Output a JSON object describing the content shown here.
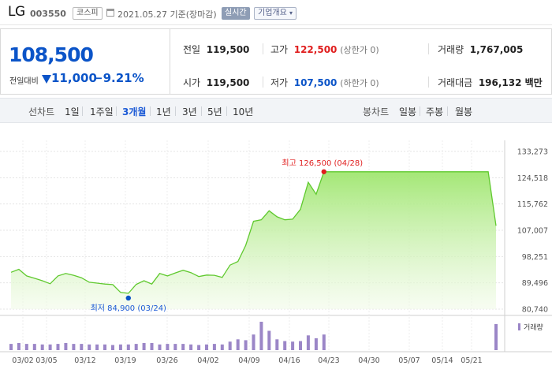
{
  "header": {
    "name": "LG",
    "code": "003550",
    "market": "코스피",
    "date": "2021.05.27 기준(장마감)",
    "realtime": "실시간",
    "company_info": "기업개요"
  },
  "price": {
    "current": "108,500",
    "change_label": "전일대비",
    "change": "11,000",
    "change_pct": "−9.21%",
    "color": "#0b54c8"
  },
  "stats": {
    "prev_label": "전일",
    "prev": "119,500",
    "high_label": "고가",
    "high": "122,500",
    "high_sub": "(상한가 0)",
    "volume_label": "거래량",
    "volume": "1,767,005",
    "open_label": "시가",
    "open": "119,500",
    "low_label": "저가",
    "low": "107,500",
    "low_sub": "(하한가 0)",
    "amount_label": "거래대금",
    "amount": "196,132 백만"
  },
  "periods": {
    "line_label": "선차트",
    "line_items": [
      "1일",
      "1주일",
      "3개월",
      "1년",
      "3년",
      "5년",
      "10년"
    ],
    "active": "3개월",
    "candle_label": "봉차트",
    "candle_items": [
      "일봉",
      "주봉",
      "월봉"
    ]
  },
  "chart_data": {
    "type": "area",
    "y_ticks": [
      "133,273",
      "124,518",
      "115,762",
      "107,007",
      "98,251",
      "89,496",
      "80,740"
    ],
    "ylim": [
      80740,
      133273
    ],
    "x_ticks": [
      "03/02",
      "03/05",
      "03/12",
      "03/19",
      "03/26",
      "04/02",
      "04/09",
      "04/16",
      "04/23",
      "04/30",
      "05/07",
      "05/14",
      "05/21"
    ],
    "max_label": "최고 126,500 (04/28)",
    "min_label": "최저 84,900 (03/24)",
    "volume_label": "거래량",
    "fill_color": "#a8ea7e",
    "line_color": "#5fc92e",
    "volume_color": "#9b86c7",
    "prices": [
      93000,
      94000,
      91800,
      91000,
      90200,
      89200,
      91800,
      92600,
      92000,
      91200,
      89700,
      89400,
      89100,
      88900,
      86300,
      86000,
      89000,
      90200,
      89100,
      92600,
      91800,
      92800,
      93700,
      92900,
      91600,
      92100,
      92000,
      91300,
      95400,
      96600,
      102000,
      110000,
      110500,
      113500,
      111500,
      110500,
      110700,
      114000,
      123000,
      119000,
      126500,
      126500,
      126500,
      126500,
      126500,
      126500,
      126500,
      126500,
      126500,
      126500,
      126500,
      126500,
      126500,
      126500,
      126500,
      126500,
      126500,
      126500,
      126500,
      126500,
      126500,
      126500,
      108500
    ],
    "volumes": [
      0.22,
      0.25,
      0.22,
      0.22,
      0.2,
      0.2,
      0.22,
      0.25,
      0.22,
      0.22,
      0.2,
      0.2,
      0.2,
      0.18,
      0.2,
      0.2,
      0.22,
      0.25,
      0.25,
      0.2,
      0.22,
      0.22,
      0.22,
      0.2,
      0.18,
      0.2,
      0.22,
      0.2,
      0.3,
      0.38,
      0.35,
      0.55,
      1.0,
      0.68,
      0.38,
      0.32,
      0.3,
      0.32,
      0.52,
      0.42,
      0.55,
      0,
      0,
      0,
      0,
      0,
      0,
      0,
      0,
      0,
      0,
      0,
      0,
      0,
      0,
      0,
      0,
      0,
      0,
      0,
      0,
      0,
      0.92
    ]
  }
}
